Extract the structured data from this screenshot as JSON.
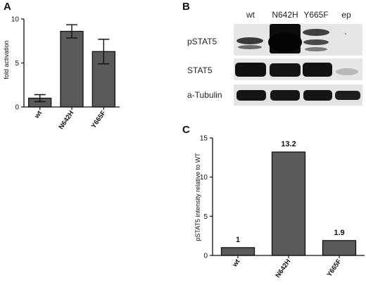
{
  "panels": {
    "a": "A",
    "b": "B",
    "c": "C"
  },
  "chart_data": [
    {
      "type": "bar",
      "panel": "A",
      "categories": [
        "wt",
        "N642H",
        "Y665F"
      ],
      "values": [
        1.0,
        8.6,
        6.3
      ],
      "error": [
        0.4,
        0.75,
        1.4
      ],
      "ylabel": "fold activation",
      "xlabel": "",
      "title": "",
      "ylim": [
        0,
        10
      ],
      "yticks": [
        "0",
        "5",
        "10"
      ],
      "bar_color": "#5a5a5a",
      "grid": false
    },
    {
      "type": "bar",
      "panel": "C",
      "categories": [
        "wt",
        "N642H",
        "Y665F"
      ],
      "values": [
        1,
        13.2,
        1.9
      ],
      "data_labels": [
        "1",
        "13.2",
        "1.9"
      ],
      "ylabel": "pSTAT5 intensity relative to WT",
      "xlabel": "",
      "title": "",
      "ylim": [
        0,
        15
      ],
      "yticks": [
        "0",
        "5",
        "10",
        "15"
      ],
      "bar_color": "#5a5a5a",
      "grid": false
    }
  ],
  "blot": {
    "lanes": [
      "wt",
      "N642H",
      "Y665F",
      "ep"
    ],
    "rows": [
      "pSTAT5",
      "STAT5",
      "a-Tubulin"
    ]
  }
}
